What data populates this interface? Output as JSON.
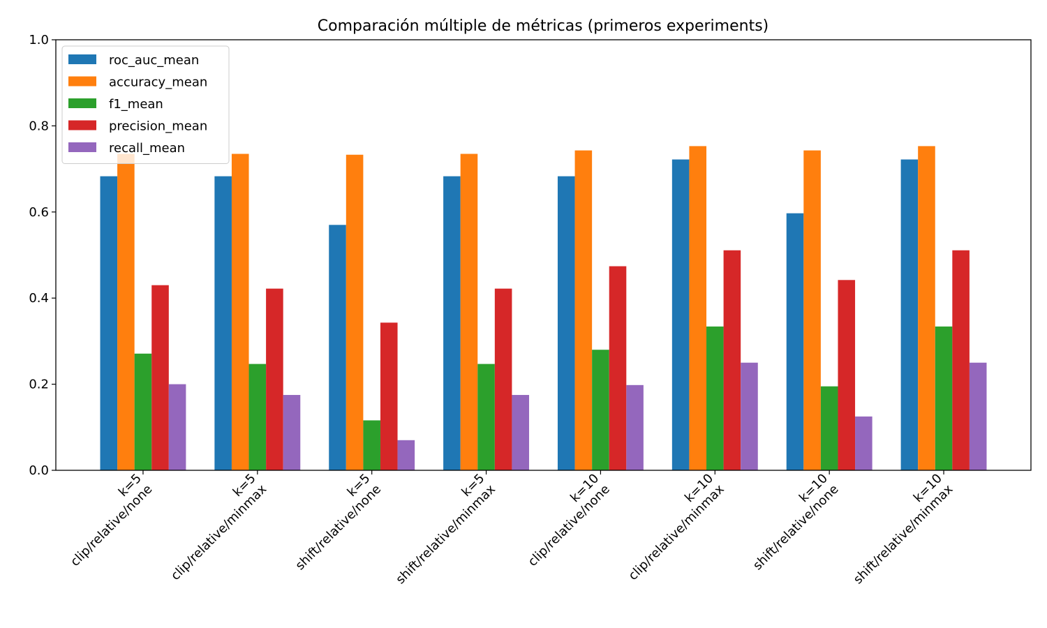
{
  "chart_data": {
    "type": "bar",
    "title": "Comparación múltiple de métricas (primeros experiments)",
    "xlabel": "",
    "ylabel": "",
    "ylim": [
      0,
      1.0
    ],
    "yticks": [
      "0.0",
      "0.2",
      "0.4",
      "0.6",
      "0.8",
      "1.0"
    ],
    "legend_position": "top-left",
    "grid": false,
    "categories": [
      [
        "k=5",
        "clip/relative/none"
      ],
      [
        "k=5",
        "clip/relative/minmax"
      ],
      [
        "k=5",
        "shift/relative/none"
      ],
      [
        "k=5",
        "shift/relative/minmax"
      ],
      [
        "k=10",
        "clip/relative/none"
      ],
      [
        "k=10",
        "clip/relative/minmax"
      ],
      [
        "k=10",
        "shift/relative/none"
      ],
      [
        "k=10",
        "shift/relative/minmax"
      ]
    ],
    "series": [
      {
        "name": "roc_auc_mean",
        "color": "#1f77b4",
        "values": [
          0.683,
          0.683,
          0.57,
          0.683,
          0.683,
          0.722,
          0.597,
          0.722
        ]
      },
      {
        "name": "accuracy_mean",
        "color": "#ff7f0e",
        "values": [
          0.735,
          0.735,
          0.733,
          0.735,
          0.743,
          0.753,
          0.743,
          0.753
        ]
      },
      {
        "name": "f1_mean",
        "color": "#2ca02c",
        "values": [
          0.271,
          0.247,
          0.116,
          0.247,
          0.28,
          0.334,
          0.195,
          0.334
        ]
      },
      {
        "name": "precision_mean",
        "color": "#d62728",
        "values": [
          0.43,
          0.422,
          0.343,
          0.422,
          0.474,
          0.511,
          0.442,
          0.511
        ]
      },
      {
        "name": "recall_mean",
        "color": "#9467bd",
        "values": [
          0.2,
          0.175,
          0.07,
          0.175,
          0.198,
          0.25,
          0.125,
          0.25
        ]
      }
    ]
  }
}
